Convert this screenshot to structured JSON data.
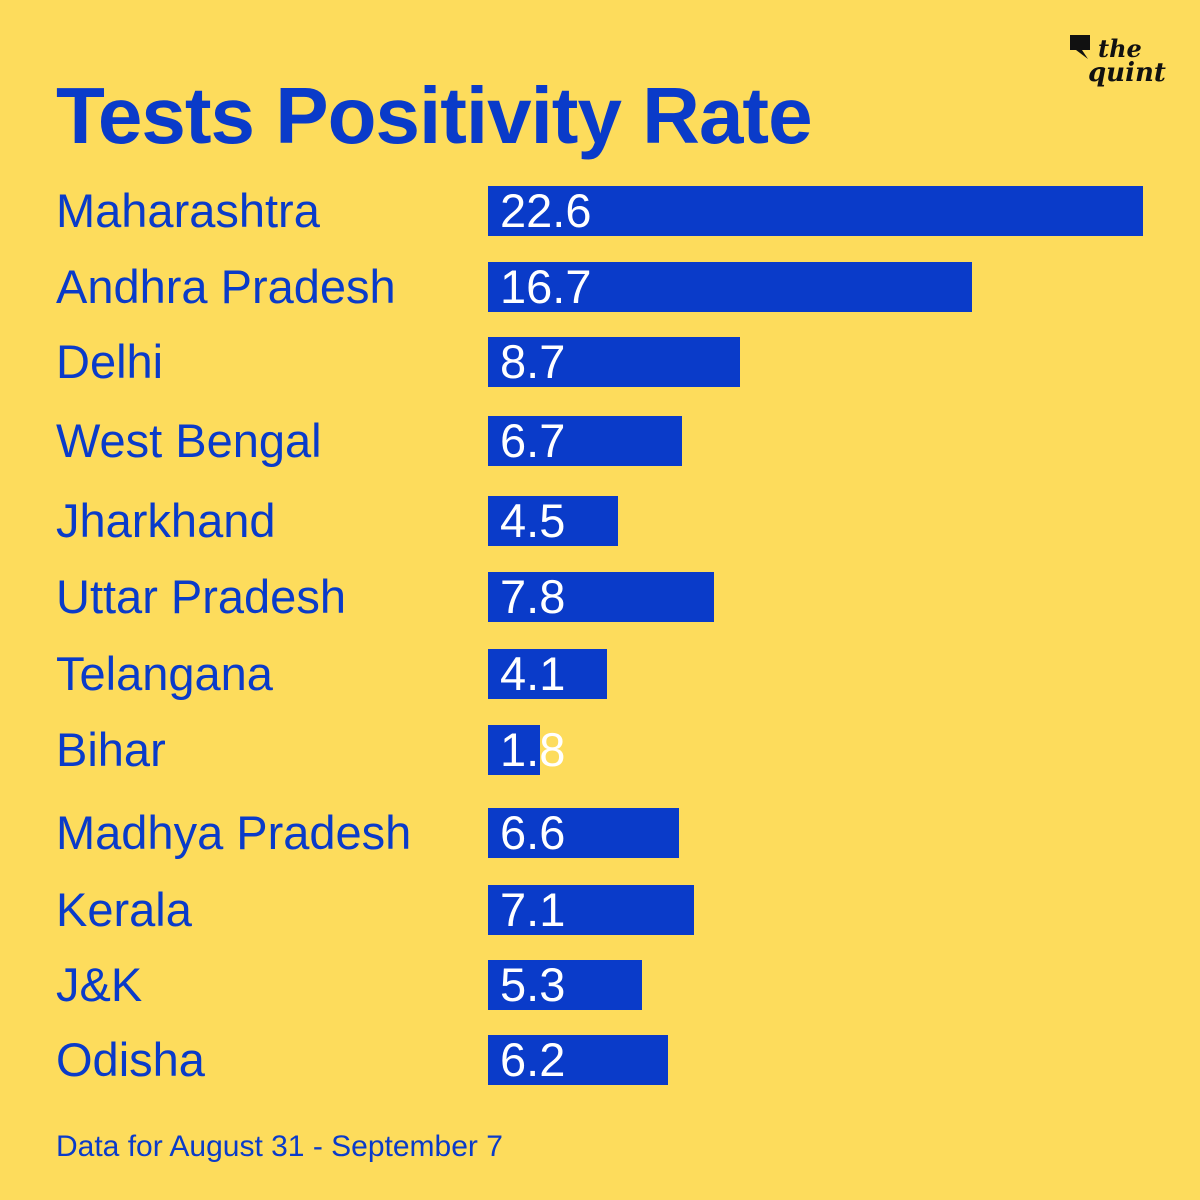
{
  "brand": {
    "line1": "the",
    "line2": "quint",
    "icon": "speech-bubble-icon"
  },
  "colors": {
    "background": "#fddc5c",
    "accent": "#0a3bc9",
    "value_text": "#ffffff"
  },
  "chart_data": {
    "type": "bar",
    "orientation": "horizontal",
    "title": "Tests Positivity Rate",
    "categories": [
      "Maharashtra",
      "Andhra Pradesh",
      "Delhi",
      "West Bengal",
      "Jharkhand",
      "Uttar Pradesh",
      "Telangana",
      "Bihar",
      "Madhya Pradesh",
      "Kerala",
      "J&K",
      "Odisha"
    ],
    "values": [
      22.6,
      16.7,
      8.7,
      6.7,
      4.5,
      7.8,
      4.1,
      1.8,
      6.6,
      7.1,
      5.3,
      6.2
    ],
    "value_labels": [
      "22.6",
      "16.7",
      "8.7",
      "6.7",
      "4.5",
      "7.8",
      "4.1",
      "1.8",
      "6.6",
      "7.1",
      "5.3",
      "6.2"
    ],
    "xlim": [
      0,
      22.6
    ],
    "xlabel": "",
    "ylabel": "",
    "grid": false,
    "legend": "none",
    "footnote": "Data for August 31 - September 7"
  }
}
